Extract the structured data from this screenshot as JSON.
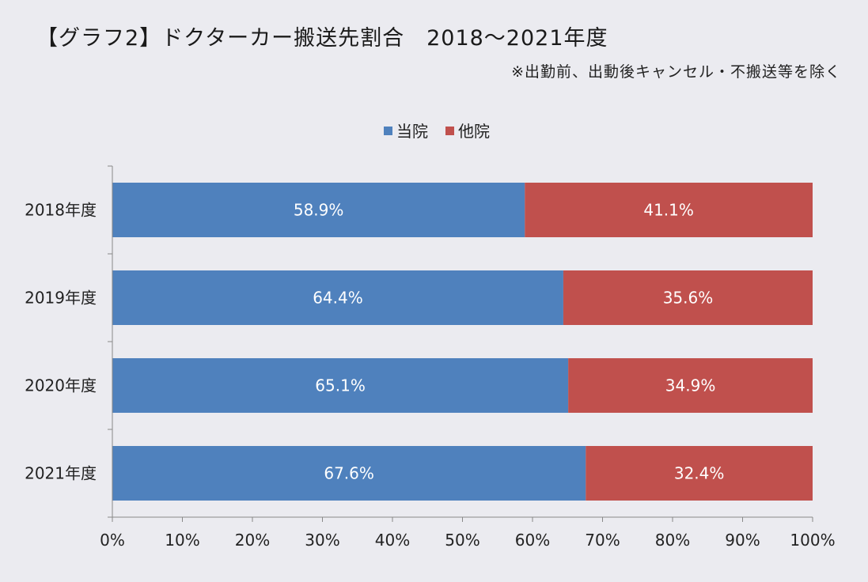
{
  "header": {
    "title": "【グラフ2】ドクターカー搬送先割合　2018～2021年度",
    "note": "※出勤前、出動後キャンセル・不搬送等を除く"
  },
  "chart_data": {
    "type": "bar",
    "orientation": "horizontal",
    "stacked": "percent",
    "categories": [
      "2018年度",
      "2019年度",
      "2020年度",
      "2021年度"
    ],
    "series": [
      {
        "name": "当院",
        "color": "#4f81bd",
        "values": [
          58.9,
          64.4,
          65.1,
          67.6
        ],
        "labels": [
          "58.9%",
          "64.4%",
          "65.1%",
          "67.6%"
        ]
      },
      {
        "name": "他院",
        "color": "#c0504d",
        "values": [
          41.1,
          35.6,
          34.9,
          32.4
        ],
        "labels": [
          "41.1%",
          "35.6%",
          "34.9%",
          "32.4%"
        ]
      }
    ],
    "xlim": [
      0,
      100
    ],
    "x_ticks": [
      "0%",
      "10%",
      "20%",
      "30%",
      "40%",
      "50%",
      "60%",
      "70%",
      "80%",
      "90%",
      "100%"
    ],
    "legend_position": "top",
    "grid": false
  }
}
